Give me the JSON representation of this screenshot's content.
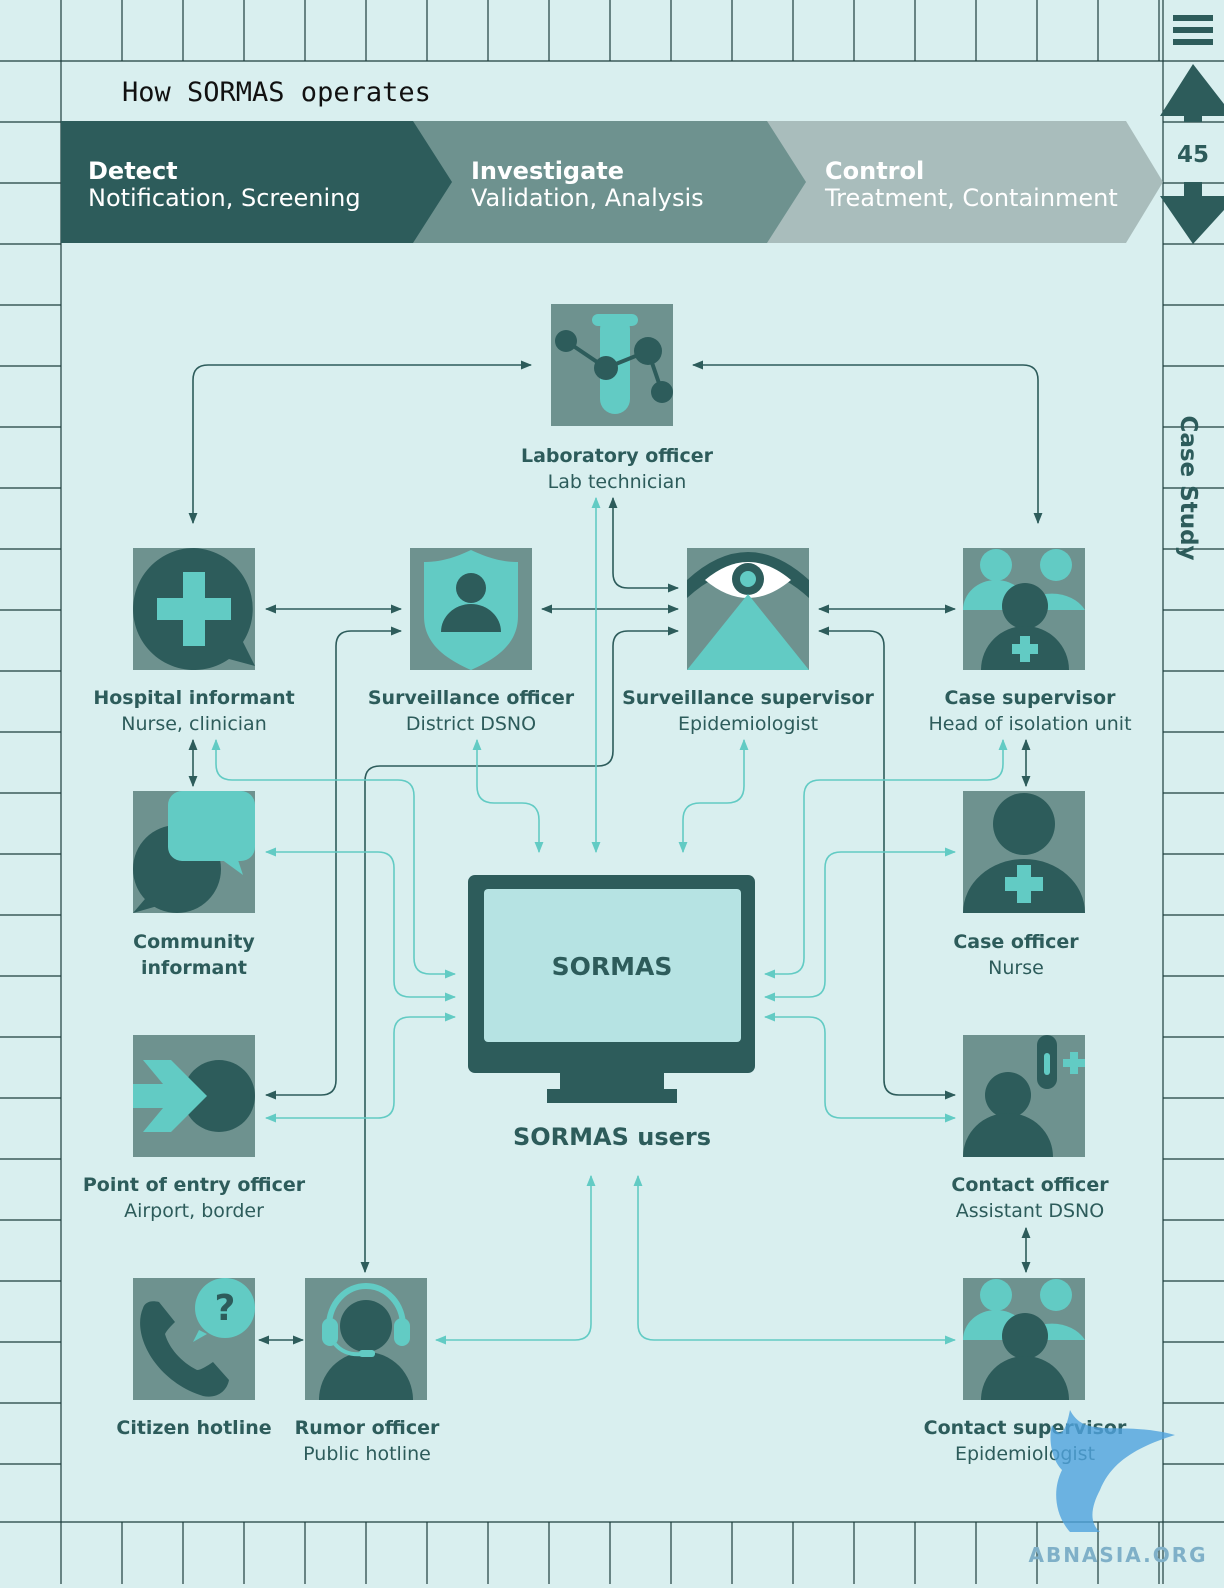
{
  "title": "How SORMAS operates",
  "page_number": "45",
  "side_label": "Case Study",
  "watermark": "ABNASIA.ORG",
  "colors": {
    "background": "#d9efef",
    "dark": "#2d5c5b",
    "mid": "#6e928f",
    "light_band": "#a9bdbc",
    "accent": "#62cbc4",
    "grid": "#1d3d3c"
  },
  "phases": [
    {
      "title": "Detect",
      "subtitle": "Notification, Screening"
    },
    {
      "title": "Investigate",
      "subtitle": "Validation, Analysis"
    },
    {
      "title": "Control",
      "subtitle": "Treatment, Containment"
    }
  ],
  "center": {
    "screen_label": "SORMAS",
    "caption": "SORMAS users"
  },
  "nodes": {
    "lab": {
      "name": "Laboratory officer",
      "role": "Lab technician",
      "icon": "test-tube-molecule-icon"
    },
    "hospital": {
      "name": "Hospital informant",
      "role": "Nurse, clinician",
      "icon": "medical-cross-bubble-icon"
    },
    "surv_officer": {
      "name": "Surveillance officer",
      "role": "District DSNO",
      "icon": "shield-person-icon"
    },
    "surv_supervisor": {
      "name": "Surveillance supervisor",
      "role": "Epidemiologist",
      "icon": "eye-icon"
    },
    "case_supervisor": {
      "name": "Case supervisor",
      "role": "Head of isolation unit",
      "icon": "team-medic-icon"
    },
    "community": {
      "name1": "Community",
      "name2": "informant",
      "icon": "speech-bubbles-icon"
    },
    "case_officer": {
      "name": "Case officer",
      "role": "Nurse",
      "icon": "nurse-icon"
    },
    "poe": {
      "name": "Point of entry officer",
      "role": "Airport, border",
      "icon": "arrow-entry-icon"
    },
    "contact_officer": {
      "name": "Contact officer",
      "role": "Assistant DSNO",
      "icon": "person-thermometer-icon"
    },
    "citizen": {
      "name": "Citizen hotline",
      "icon": "phone-question-icon"
    },
    "rumor": {
      "name": "Rumor officer",
      "role": "Public hotline",
      "icon": "headset-icon"
    },
    "contact_supervisor": {
      "name": "Contact supervisor",
      "role": "Epidemiologist",
      "icon": "team-person-icon"
    }
  }
}
